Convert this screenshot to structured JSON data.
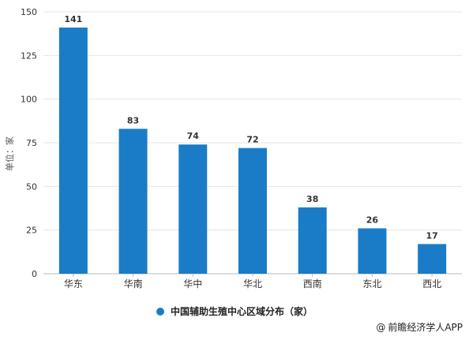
{
  "chart_data": {
    "type": "bar",
    "categories": [
      "华东",
      "华南",
      "华中",
      "华北",
      "西南",
      "东北",
      "西北"
    ],
    "values": [
      141,
      83,
      74,
      72,
      38,
      26,
      17
    ],
    "series": [
      {
        "name": "中国辅助生殖中心区域分布（家）",
        "values": [
          141,
          83,
          74,
          72,
          38,
          26,
          17
        ]
      }
    ],
    "ylabel": "单位：家",
    "ylim": [
      0,
      150
    ],
    "yticks": [
      0,
      25,
      50,
      75,
      100,
      125,
      150
    ],
    "grid": "horizontal",
    "legend_position": "bottom",
    "bar_color": "#1a7cc7"
  },
  "legend": {
    "label": "中国辅助生殖中心区域分布（家）"
  },
  "footer": {
    "text": "前瞻经济学人APP",
    "icon": "at-sign-icon"
  }
}
